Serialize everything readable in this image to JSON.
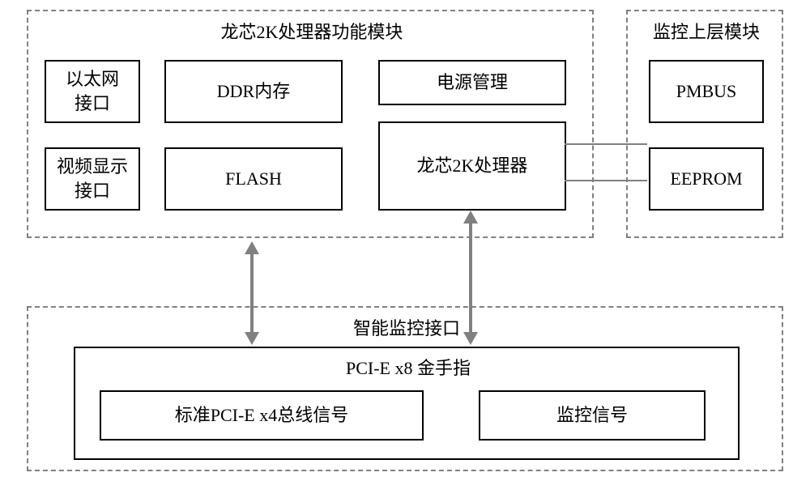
{
  "diagram": {
    "type": "block-diagram",
    "background_color": "#ffffff",
    "dashed_border_color": "#808080",
    "solid_border_color": "#000000",
    "connector_color": "#808080",
    "font_family": "SimSun",
    "title_fontsize": 22,
    "box_fontsize": 22
  },
  "modules": {
    "proc": {
      "title": "龙芯2K处理器功能模块"
    },
    "mon": {
      "title": "监控上层模块"
    },
    "iface": {
      "title": "智能监控接口"
    }
  },
  "boxes": {
    "eth": "以太网\n接口",
    "video": "视频显示\n接口",
    "ddr": "DDR内存",
    "flash": "FLASH",
    "pwr": "电源管理",
    "cpu": "龙芯2K处理器",
    "pmbus": "PMBUS",
    "eeprom": "EEPROM",
    "gold": "PCI-E x8 金手指",
    "pcie4": "标准PCI-E x4总线信号",
    "sig": "监控信号"
  },
  "connectors": {
    "cpu_to_pmbus": {
      "type": "line"
    },
    "cpu_to_eeprom": {
      "type": "line"
    },
    "proc_to_pcie4": {
      "type": "double-arrow-vertical"
    },
    "cpu_to_sig": {
      "type": "double-arrow-vertical"
    }
  }
}
